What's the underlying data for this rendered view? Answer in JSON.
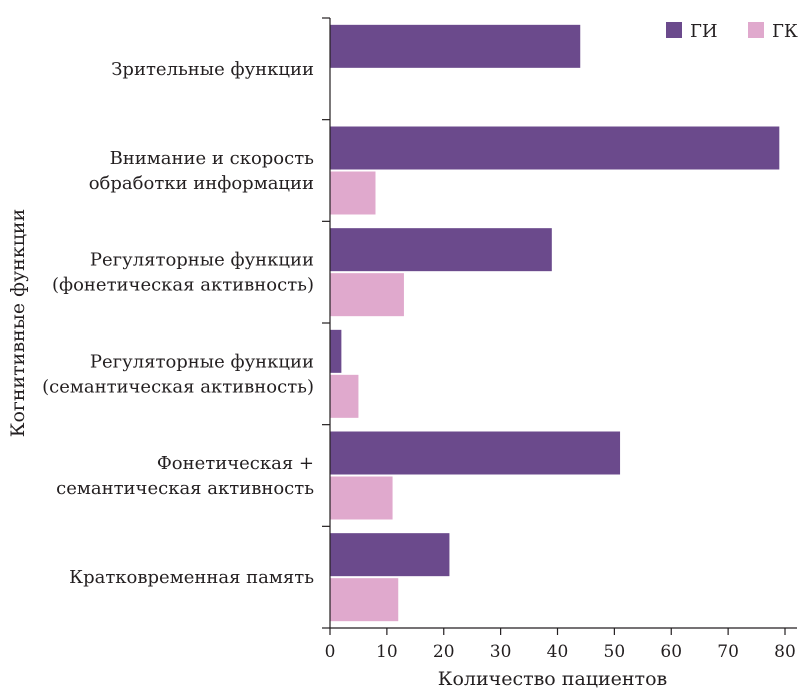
{
  "chart_data": {
    "type": "bar",
    "orientation": "horizontal",
    "xlabel": "Количество пациентов",
    "ylabel": "Когнитивные функции",
    "xlim": [
      0,
      80
    ],
    "xticks": [
      0,
      10,
      20,
      30,
      40,
      50,
      60,
      70,
      80
    ],
    "grid": false,
    "legend_position": "top-right",
    "categories": [
      [
        "Зрительные функции"
      ],
      [
        "Внимание и скорость",
        "обработки информации"
      ],
      [
        "Регуляторные функции",
        "(фонетическая активность)"
      ],
      [
        "Регуляторные функции",
        "(семантическая активность)"
      ],
      [
        "Фонетическая +",
        "семантическая активность"
      ],
      [
        "Кратковременная память"
      ]
    ],
    "series": [
      {
        "name": "ГИ",
        "color": "#6b4a8c",
        "values": [
          44,
          79,
          39,
          2,
          51,
          21
        ]
      },
      {
        "name": "ГК",
        "color": "#e0a9cd",
        "values": [
          0,
          8,
          13,
          5,
          11,
          12
        ]
      }
    ]
  }
}
